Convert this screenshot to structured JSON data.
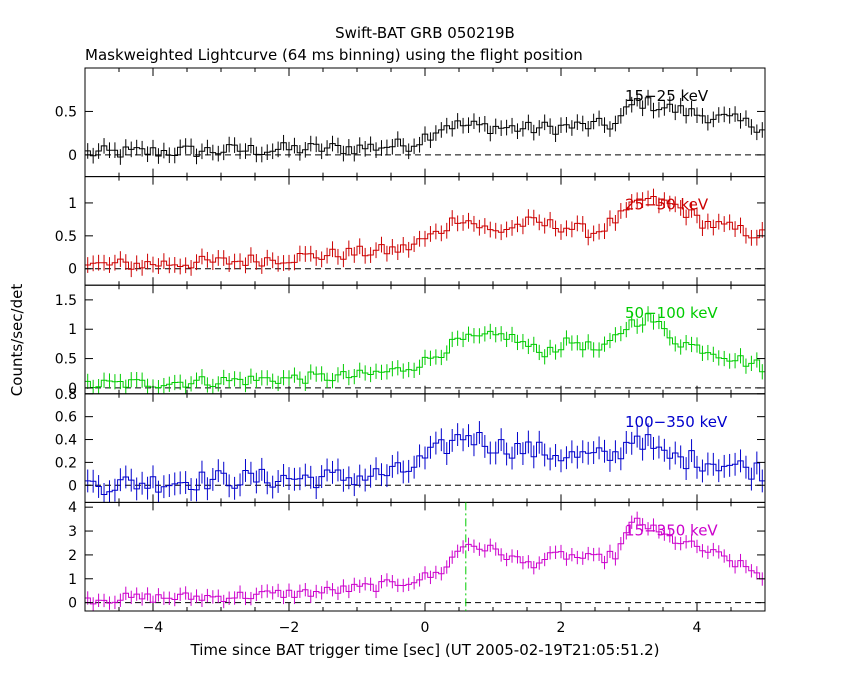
{
  "chart_data": {
    "type": "line",
    "title": "Swift-BAT GRB 050219B",
    "subtitle": "Maskweighted Lightcurve (64 ms binning) using the flight position",
    "xlabel": "Time since BAT trigger time [sec] (UT 2005-02-19T21:05:51.2)",
    "ylabel": "Counts/sec/det",
    "xlim": [
      -5,
      5
    ],
    "x_ticks": [
      -4,
      -2,
      0,
      2,
      4
    ],
    "x_tick_labels": [
      "−4",
      "−2",
      "0",
      "2",
      "4"
    ],
    "marker_line": {
      "x": 0.6,
      "panel": 4,
      "color": "#00cc00"
    },
    "panels": [
      {
        "name": "15-25 keV",
        "label": "15−25 keV",
        "color": "#000000",
        "ylim": [
          -0.25,
          1.0
        ],
        "yticks": [
          0,
          0.5
        ],
        "ytick_labels": [
          "0",
          "0.5"
        ],
        "profile": [
          [
            -5,
            0.02
          ],
          [
            -3,
            0.05
          ],
          [
            -1,
            0.08
          ],
          [
            -0.2,
            0.12
          ],
          [
            0.3,
            0.35
          ],
          [
            1.5,
            0.3
          ],
          [
            2.8,
            0.35
          ],
          [
            3.1,
            0.62
          ],
          [
            3.8,
            0.5
          ],
          [
            4.5,
            0.4
          ],
          [
            5,
            0.32
          ]
        ],
        "noise": 0.08,
        "err": 0.09
      },
      {
        "name": "25-50 keV",
        "label": "25−50 keV",
        "color": "#cc0000",
        "ylim": [
          -0.25,
          1.4
        ],
        "yticks": [
          0,
          0.5,
          1
        ],
        "ytick_labels": [
          "0",
          "0.5",
          "1"
        ],
        "profile": [
          [
            -5,
            0.05
          ],
          [
            -3,
            0.1
          ],
          [
            -1.5,
            0.2
          ],
          [
            -0.3,
            0.3
          ],
          [
            0.2,
            0.55
          ],
          [
            0.5,
            0.8
          ],
          [
            1,
            0.55
          ],
          [
            1.5,
            0.7
          ],
          [
            2,
            0.65
          ],
          [
            2.5,
            0.55
          ],
          [
            2.9,
            0.8
          ],
          [
            3.2,
            1.05
          ],
          [
            3.7,
            0.95
          ],
          [
            4.1,
            0.7
          ],
          [
            5,
            0.5
          ]
        ],
        "noise": 0.1,
        "err": 0.12
      },
      {
        "name": "50-100 keV",
        "label": "50−100 keV",
        "color": "#00cc00",
        "ylim": [
          -0.1,
          1.75
        ],
        "yticks": [
          0,
          0.5,
          1,
          1.5
        ],
        "ytick_labels": [
          "0",
          "0.5",
          "1",
          "1.5"
        ],
        "profile": [
          [
            -5,
            0.05
          ],
          [
            -3,
            0.12
          ],
          [
            -1,
            0.2
          ],
          [
            -0.4,
            0.3
          ],
          [
            0,
            0.45
          ],
          [
            0.5,
            0.8
          ],
          [
            1.2,
            0.9
          ],
          [
            1.7,
            0.6
          ],
          [
            2.2,
            0.8
          ],
          [
            2.6,
            0.6
          ],
          [
            3,
            1.1
          ],
          [
            3.3,
            1.2
          ],
          [
            3.7,
            0.8
          ],
          [
            4.3,
            0.6
          ],
          [
            5,
            0.35
          ]
        ],
        "noise": 0.1,
        "err": 0.13
      },
      {
        "name": "100-350 keV",
        "label": "100−350 keV",
        "color": "#0000cc",
        "ylim": [
          -0.15,
          0.8
        ],
        "yticks": [
          0,
          0.2,
          0.4,
          0.6,
          0.8
        ],
        "ytick_labels": [
          "0",
          "0.2",
          "0.4",
          "0.6",
          "0.8"
        ],
        "profile": [
          [
            -5,
            0.0
          ],
          [
            -3,
            0.05
          ],
          [
            -1,
            0.07
          ],
          [
            -0.3,
            0.12
          ],
          [
            0.2,
            0.3
          ],
          [
            0.6,
            0.45
          ],
          [
            1,
            0.35
          ],
          [
            1.6,
            0.3
          ],
          [
            2.2,
            0.25
          ],
          [
            2.8,
            0.25
          ],
          [
            3.1,
            0.45
          ],
          [
            3.5,
            0.25
          ],
          [
            4.3,
            0.2
          ],
          [
            5,
            0.12
          ]
        ],
        "noise": 0.09,
        "err": 0.1
      },
      {
        "name": "15-350 keV",
        "label": "15−350 keV",
        "color": "#cc00cc",
        "ylim": [
          -0.35,
          4.2
        ],
        "yticks": [
          0,
          1,
          2,
          3,
          4
        ],
        "ytick_labels": [
          "0",
          "1",
          "2",
          "3",
          "4"
        ],
        "profile": [
          [
            -5,
            0.15
          ],
          [
            -3,
            0.25
          ],
          [
            -1.5,
            0.45
          ],
          [
            -0.5,
            0.75
          ],
          [
            0.2,
            1.2
          ],
          [
            0.6,
            2.5
          ],
          [
            1.1,
            2.1
          ],
          [
            1.5,
            1.6
          ],
          [
            2,
            2.0
          ],
          [
            2.5,
            1.8
          ],
          [
            2.8,
            2.0
          ],
          [
            3.1,
            3.5
          ],
          [
            3.5,
            2.8
          ],
          [
            4.2,
            2.1
          ],
          [
            5,
            1.1
          ]
        ],
        "noise": 0.22,
        "err": 0.28
      }
    ]
  }
}
